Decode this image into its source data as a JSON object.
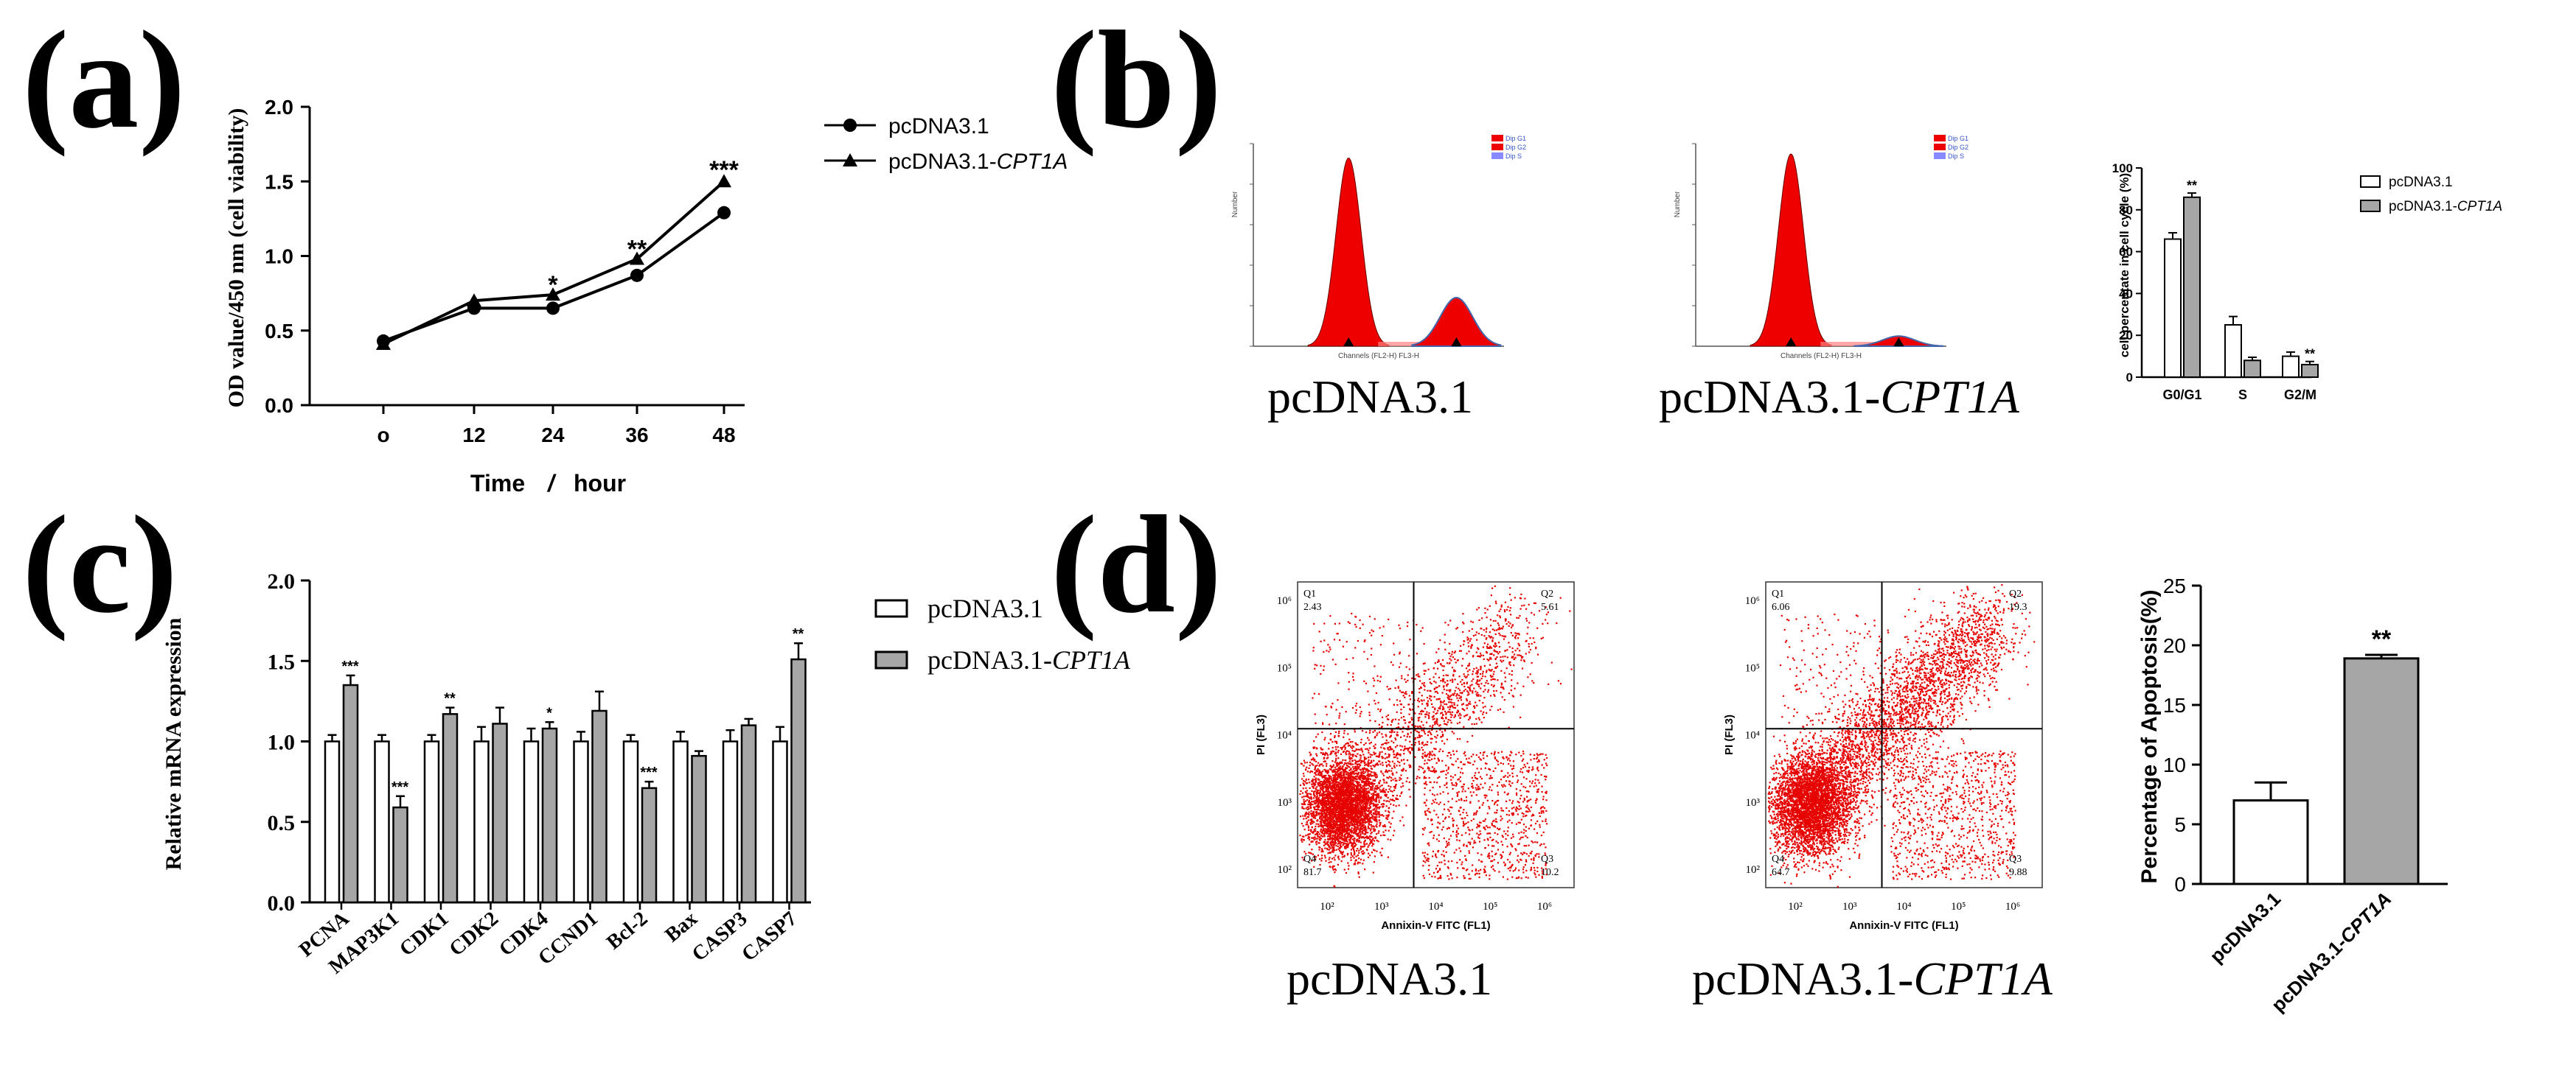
{
  "panels": {
    "a": "(a)",
    "b": "(b)",
    "c": "(c)",
    "d": "(d)"
  },
  "chart_data": [
    {
      "id": "a",
      "type": "line",
      "title": "",
      "xlabel": "Time / hour",
      "xlabel_parts": [
        "Time",
        "/",
        "hour"
      ],
      "ylabel": "OD value/450 nm (cell viability)",
      "x": [
        0,
        12,
        24,
        36,
        48
      ],
      "xtick_labels": [
        "o",
        "12",
        "24",
        "36",
        "48"
      ],
      "yticks": [
        "0.0",
        "0.5",
        "1.0",
        "1.5",
        "2.0"
      ],
      "ylim": [
        0,
        2.0
      ],
      "series": [
        {
          "name": "pcDNA3.1",
          "name_plain": "pcDNA3.1",
          "name_italic": "",
          "marker": "circle",
          "values": [
            0.43,
            0.65,
            0.65,
            0.87,
            1.29
          ]
        },
        {
          "name": "pcDNA3.1-CPT1A",
          "name_plain": "pcDNA3.1-",
          "name_italic": "CPT1A",
          "marker": "triangle",
          "values": [
            0.41,
            0.7,
            0.74,
            0.98,
            1.5
          ]
        }
      ],
      "annotations": [
        {
          "x": 24,
          "text": "*",
          "y": 0.79
        },
        {
          "x": 36,
          "text": "**",
          "y": 1.03
        },
        {
          "x": 48,
          "text": "***",
          "y": 1.56
        }
      ]
    },
    {
      "id": "b-bar",
      "type": "bar",
      "ylabel": "cell percentate in cell cycle (%)",
      "categories": [
        "G0/G1",
        "S",
        "G2/M"
      ],
      "yticks": [
        "0",
        "20",
        "40",
        "60",
        "80",
        "100"
      ],
      "ylim": [
        0,
        100
      ],
      "series": [
        {
          "name": "pcDNA3.1",
          "name_plain": "pcDNA3.1",
          "name_italic": "",
          "values": [
            66,
            25,
            10
          ],
          "errors": [
            3,
            4,
            2
          ]
        },
        {
          "name": "pcDNA3.1-CPT1A",
          "name_plain": "pcDNA3.1-",
          "name_italic": "CPT1A",
          "values": [
            86,
            8,
            6
          ],
          "errors": [
            2,
            1.5,
            1.5
          ]
        }
      ],
      "annotations": [
        {
          "category": "G0/G1",
          "text": "**"
        },
        {
          "category": "G2/M",
          "text": "**"
        }
      ]
    },
    {
      "id": "c",
      "type": "bar",
      "ylabel": "Relative mRNA expression",
      "categories": [
        "PCNA",
        "MAP3K1",
        "CDK1",
        "CDK2",
        "CDK4",
        "CCND1",
        "Bcl-2",
        "Bax",
        "CASP3",
        "CASP7"
      ],
      "yticks": [
        "0.0",
        "0.5",
        "1.0",
        "1.5",
        "2.0"
      ],
      "ylim": [
        0,
        2.0
      ],
      "series": [
        {
          "name": "pcDNA3.1",
          "name_plain": "pcDNA3.1",
          "name_italic": "",
          "values": [
            1.0,
            1.0,
            1.0,
            1.0,
            1.0,
            1.0,
            1.0,
            1.0,
            1.0,
            1.0
          ],
          "errors": [
            0.04,
            0.04,
            0.04,
            0.09,
            0.08,
            0.06,
            0.04,
            0.06,
            0.07,
            0.09
          ]
        },
        {
          "name": "pcDNA3.1-CPT1A",
          "name_plain": "pcDNA3.1-",
          "name_italic": "CPT1A",
          "values": [
            1.35,
            0.59,
            1.17,
            1.11,
            1.08,
            1.19,
            0.71,
            0.91,
            1.1,
            1.51
          ],
          "errors": [
            0.06,
            0.07,
            0.04,
            0.1,
            0.04,
            0.12,
            0.04,
            0.03,
            0.04,
            0.1
          ]
        }
      ],
      "annotations": [
        {
          "category": "PCNA",
          "text": "***"
        },
        {
          "category": "MAP3K1",
          "text": "***"
        },
        {
          "category": "CDK1",
          "text": "**"
        },
        {
          "category": "CDK4",
          "text": "*"
        },
        {
          "category": "Bcl-2",
          "text": "***"
        },
        {
          "category": "CASP7",
          "text": "**"
        }
      ]
    },
    {
      "id": "d-bar",
      "type": "bar",
      "ylabel": "Percentage of Apoptosis(%)",
      "categories": [
        "pcDNA3.1",
        "pcDNA3.1-CPT1A"
      ],
      "category_plain": [
        "pcDNA3.1",
        "pcDNA3.1-"
      ],
      "category_italic": [
        "",
        "CPT1A"
      ],
      "yticks": [
        "0",
        "5",
        "10",
        "15",
        "20",
        "25"
      ],
      "ylim": [
        0,
        25
      ],
      "values": [
        7.0,
        18.9
      ],
      "errors": [
        1.5,
        0.3
      ],
      "colors": [
        "#ffffff",
        "#a6a6a6"
      ],
      "annotations": [
        {
          "category": "pcDNA3.1-CPT1A",
          "text": "**"
        }
      ]
    }
  ],
  "histograms": [
    {
      "caption_plain": "pcDNA3.1",
      "caption_italic": "",
      "legend": [
        "Dip G1",
        "Dip G2",
        "Dip S"
      ],
      "xlabel": "Channels (FL2-H) FL3-H",
      "ylabel": "Number",
      "g1_height": 0.93,
      "g2_height": 0.24
    },
    {
      "caption_plain": "pcDNA3.1-",
      "caption_italic": "CPT1A",
      "legend": [
        "Dip G1",
        "Dip G2",
        "Dip S"
      ],
      "xlabel": "Channels (FL2-H) FL3-H",
      "ylabel": "Number",
      "g1_height": 0.95,
      "g2_height": 0.05
    }
  ],
  "scatters": [
    {
      "caption_plain": "pcDNA3.1",
      "caption_italic": "",
      "xlabel": "Annixin-V FITC (FL1)",
      "ylabel": "PI (FL3)",
      "q1": "Q1",
      "q1_val": "2.43",
      "q2": "Q2",
      "q2_val": "5.61",
      "q3": "Q3",
      "q3_val": "10.2",
      "q4": "Q4",
      "q4_val": "81.7",
      "xticks": [
        "10²",
        "10³",
        "10⁴",
        "10⁵",
        "10⁶"
      ],
      "yticks": [
        "10²",
        "10³",
        "10⁴",
        "10⁵",
        "10⁶"
      ]
    },
    {
      "caption_plain": "pcDNA3.1-",
      "caption_italic": "CPT1A",
      "xlabel": "Annixin-V FITC (FL1)",
      "ylabel": "PI (FL3)",
      "q1": "Q1",
      "q1_val": "6.06",
      "q2": "Q2",
      "q2_val": "19.3",
      "q3": "Q3",
      "q3_val": "9.88",
      "q4": "Q4",
      "q4_val": "64.7",
      "xticks": [
        "10²",
        "10³",
        "10⁴",
        "10⁵",
        "10⁶"
      ],
      "yticks": [
        "10²",
        "10³",
        "10⁴",
        "10⁵",
        "10⁶"
      ]
    }
  ],
  "colors": {
    "axis": "#000000",
    "histogram_fill": "#ee0000",
    "scatter_dot": "#e60000",
    "grey_bar": "#a6a6a6",
    "legend_g1": "#ee0000",
    "legend_g2": "#ee0000",
    "legend_s": "#8888ff"
  }
}
